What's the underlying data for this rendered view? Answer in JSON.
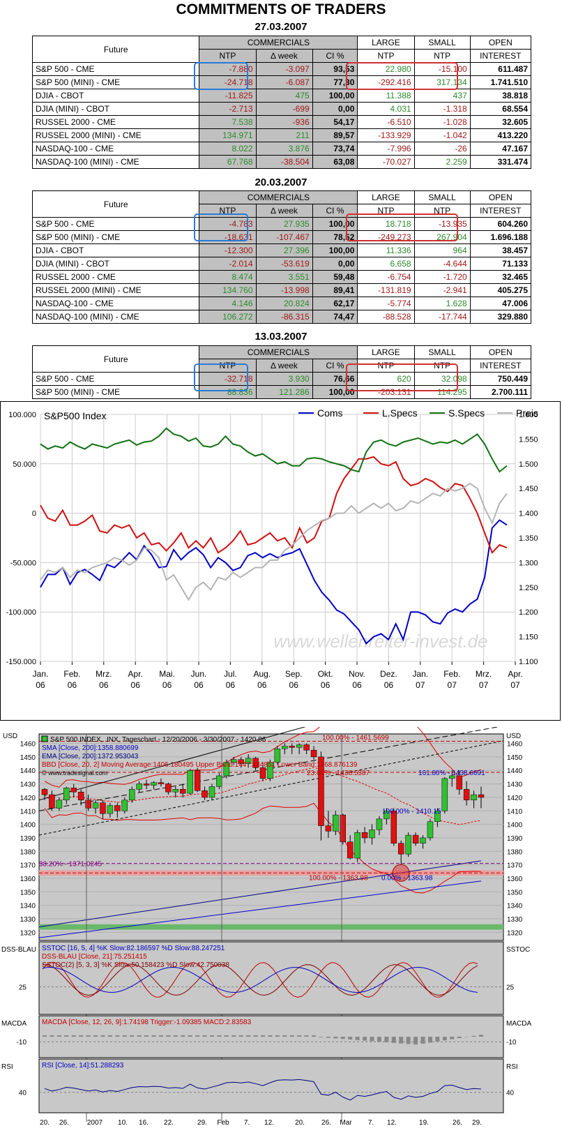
{
  "title": "COMMITMENTS OF TRADERS",
  "header": {
    "future": "Future",
    "commercials": "COMMERCIALS",
    "ntp": "NTP",
    "dweek": "∆ week",
    "ci": "CI %",
    "large": "LARGE",
    "small": "SMALL",
    "open": "OPEN",
    "interest": "INTEREST"
  },
  "tables": [
    {
      "date": "27.03.2007",
      "rows": [
        [
          "S&P 500 - CME",
          "-7.880",
          "-3.097",
          "93,53",
          "22.980",
          "-15.100",
          "611.487"
        ],
        [
          "S&P 500 (MINI) - CME",
          "-24.718",
          "-6.087",
          "77,30",
          "-292.416",
          "317.134",
          "1.741.510"
        ],
        [
          "DJIA - CBOT",
          "-11.825",
          "475",
          "100,00",
          "11.388",
          "437",
          "38.818"
        ],
        [
          "DJIA (MINI) - CBOT",
          "-2.713",
          "-699",
          "0,00",
          "4.031",
          "-1.318",
          "68.554"
        ],
        [
          "RUSSEL 2000 - CME",
          "7.538",
          "-936",
          "54,17",
          "-6.510",
          "-1.028",
          "32.605"
        ],
        [
          "RUSSEL 2000 (MINI) - CME",
          "134.971",
          "211",
          "89,57",
          "-133.929",
          "-1.042",
          "413.220"
        ],
        [
          "NASDAQ-100 - CME",
          "8.022",
          "3.876",
          "73,74",
          "-7.996",
          "-26",
          "47.167"
        ],
        [
          "NASDAQ-100 (MINI) - CME",
          "67.768",
          "-38.504",
          "63,08",
          "-70.027",
          "2.259",
          "331.474"
        ]
      ]
    },
    {
      "date": "20.03.2007",
      "rows": [
        [
          "S&P 500 - CME",
          "-4.783",
          "27.935",
          "100,00",
          "18.718",
          "-13.935",
          "604.260"
        ],
        [
          "S&P 500 (MINI) - CME",
          "-18.631",
          "-107.467",
          "78,52",
          "-249.273",
          "267.904",
          "1.696.188"
        ],
        [
          "DJIA - CBOT",
          "-12.300",
          "27.396",
          "100,00",
          "11.336",
          "964",
          "38.457"
        ],
        [
          "DJIA (MINI) - CBOT",
          "-2.014",
          "-53.619",
          "0,00",
          "6.658",
          "-4.644",
          "71.133"
        ],
        [
          "RUSSEL 2000 - CME",
          "8.474",
          "3.551",
          "59,48",
          "-6.754",
          "-1.720",
          "32.465"
        ],
        [
          "RUSSEL 2000 (MINI) - CME",
          "134.760",
          "-13.998",
          "89,41",
          "-131.819",
          "-2.941",
          "405.275"
        ],
        [
          "NASDAQ-100 - CME",
          "4.146",
          "20.824",
          "62,17",
          "-5.774",
          "1.628",
          "47.006"
        ],
        [
          "NASDAQ-100 (MINI) - CME",
          "106.272",
          "-86.315",
          "74,47",
          "-88.528",
          "-17.744",
          "329.880"
        ]
      ]
    },
    {
      "date": "13.03.2007",
      "rows": [
        [
          "S&P 500 - CME",
          "-32.718",
          "3.930",
          "76,66",
          "620",
          "32.098",
          "750.449"
        ],
        [
          "S&P 500 (MINI) - CME",
          "88.836",
          "121.286",
          "100,00",
          "-203.131",
          "114.295",
          "2.700.111"
        ]
      ]
    }
  ],
  "chart_data": [
    {
      "type": "line",
      "title": "S&P500 Index",
      "x_labels": [
        [
          "Jan.",
          "06"
        ],
        [
          "Feb.",
          "06"
        ],
        [
          "Mrz.",
          "06"
        ],
        [
          "Apr.",
          "06"
        ],
        [
          "Mai.",
          "06"
        ],
        [
          "Jun.",
          "06"
        ],
        [
          "Jul.",
          "06"
        ],
        [
          "Aug.",
          "06"
        ],
        [
          "Sep.",
          "06"
        ],
        [
          "Okt.",
          "06"
        ],
        [
          "Nov.",
          "06"
        ],
        [
          "Dez.",
          "06"
        ],
        [
          "Jan.",
          "07"
        ],
        [
          "Feb.",
          "07"
        ],
        [
          "Mrz.",
          "07"
        ],
        [
          "Apr.",
          "07"
        ]
      ],
      "y_left": [
        "100.000",
        "50.000",
        "0",
        "-50.000",
        "-100.000",
        "-150.000"
      ],
      "ylim_left": [
        -150000,
        100000
      ],
      "y_right": [
        "1.600",
        "1.550",
        "1.500",
        "1.450",
        "1.400",
        "1.350",
        "1.300",
        "1.250",
        "1.200",
        "1.150",
        "1.100"
      ],
      "ylim_right": [
        1100,
        1600
      ],
      "watermark": "www.wellenreiter-invest.de",
      "grid": true,
      "legend": "top",
      "series": [
        {
          "name": "Coms",
          "color": "#0000c8",
          "axis": "left",
          "values": [
            -75000,
            -62000,
            -62000,
            -55000,
            -72000,
            -60000,
            -57000,
            -62000,
            -68000,
            -52000,
            -55000,
            -48000,
            -40000,
            -47000,
            -33000,
            -42000,
            -55000,
            -54000,
            -37000,
            -47000,
            -40000,
            -35000,
            -42000,
            -55000,
            -45000,
            -50000,
            -58000,
            -55000,
            -43000,
            -40000,
            -45000,
            -41000,
            -45000,
            -42000,
            -40000,
            -36000,
            -52000,
            -68000,
            -80000,
            -88000,
            -98000,
            -102000,
            -110000,
            -118000,
            -132000,
            -125000,
            -122000,
            -128000,
            -112000,
            -128000,
            -100000,
            -100000,
            -103000,
            -110000,
            -112000,
            -101000,
            -97000,
            -100000,
            -92000,
            -87000,
            -65000,
            -15000,
            -7000,
            -12000
          ]
        },
        {
          "name": "L.Specs",
          "color": "#d01010",
          "axis": "left",
          "values": [
            8000,
            -5000,
            -8000,
            3000,
            -12000,
            -12000,
            -8000,
            -2000,
            -18000,
            -20000,
            -12000,
            -15000,
            -12000,
            -25000,
            -20000,
            -32000,
            -30000,
            -38000,
            -30000,
            -20000,
            -35000,
            -28000,
            -35000,
            -25000,
            -40000,
            -35000,
            -28000,
            -18000,
            -32000,
            -30000,
            -25000,
            -20000,
            -28000,
            -25000,
            -35000,
            -15000,
            -30000,
            -25000,
            -8000,
            -5000,
            20000,
            35000,
            45000,
            55000,
            55000,
            57000,
            50000,
            48000,
            52000,
            35000,
            28000,
            30000,
            35000,
            32000,
            26000,
            22000,
            30000,
            28000,
            15000,
            0,
            -20000,
            -40000,
            -32000,
            -35000
          ]
        },
        {
          "name": "S.Specs",
          "color": "#107010",
          "axis": "left",
          "values": [
            70000,
            65000,
            68000,
            66000,
            72000,
            68000,
            65000,
            70000,
            68000,
            66000,
            70000,
            72000,
            74000,
            69000,
            72000,
            73000,
            78000,
            86000,
            80000,
            78000,
            73000,
            76000,
            68000,
            67000,
            70000,
            78000,
            70000,
            68000,
            62000,
            58000,
            60000,
            55000,
            50000,
            52000,
            48000,
            48000,
            55000,
            56000,
            55000,
            52000,
            50000,
            48000,
            44000,
            42000,
            62000,
            72000,
            74000,
            70000,
            68000,
            72000,
            74000,
            76000,
            73000,
            70000,
            72000,
            71000,
            74000,
            70000,
            75000,
            80000,
            70000,
            55000,
            42000,
            48000
          ]
        },
        {
          "name": "Preis",
          "color": "#b4b4b4",
          "axis": "right",
          "values": [
            1265,
            1285,
            1280,
            1290,
            1270,
            1285,
            1280,
            1290,
            1295,
            1300,
            1310,
            1305,
            1295,
            1305,
            1330,
            1325,
            1310,
            1265,
            1275,
            1250,
            1225,
            1250,
            1260,
            1245,
            1270,
            1265,
            1280,
            1270,
            1280,
            1290,
            1290,
            1305,
            1305,
            1325,
            1335,
            1350,
            1365,
            1375,
            1385,
            1390,
            1400,
            1400,
            1415,
            1400,
            1410,
            1420,
            1410,
            1420,
            1405,
            1410,
            1425,
            1420,
            1430,
            1440,
            1435,
            1450,
            1445,
            1450,
            1460,
            1450,
            1410,
            1380,
            1420,
            1440
          ]
        }
      ]
    },
    {
      "type": "candlestick",
      "title": "S&P 500 INDEX, .INX, Tageschart - 12/20/2006 - 3/30/2007 - 1420.86",
      "sma": "SMA [Close, 200]:1358.880699",
      "ema": "EMA [Close, 200]:1372.953043",
      "bb": "BBD [Close, 20, 2] Moving Average:1406.180495 Upper Band:1447.484851 Lower Band:1368.876139",
      "source": "© www.tradesignal.com",
      "y_unit": "USD",
      "y_labels": [
        "1460",
        "1450",
        "1440",
        "1430",
        "1420",
        "1410",
        "1400",
        "1390",
        "1380",
        "1370",
        "1360",
        "1350",
        "1340",
        "1330",
        "1320"
      ],
      "ylim": [
        1314,
        1467
      ],
      "fib": {
        "top": "100.00% - 1461.5699",
        "f23": "23.60% - 1438.5387",
        "f161": "161.80% - 1438.6691",
        "f100a": "100.00% - 1410.15",
        "f38": "38.20% - 1371.0245",
        "f100b": "100.00% - 1363.98",
        "f0": "0.00% - 1363.98"
      },
      "x_labels": [
        "20.",
        "26.",
        "2007",
        "10.",
        "16.",
        "22.",
        "29.",
        "Feb",
        "7.",
        "12.",
        "20.",
        "26.",
        "Mar",
        "7.",
        "12.",
        "19.",
        "26.",
        "29."
      ],
      "candles": [
        [
          1426,
          1427,
          1418,
          1422
        ],
        [
          1422,
          1425,
          1410,
          1412
        ],
        [
          1412,
          1420,
          1410,
          1418
        ],
        [
          1418,
          1428,
          1415,
          1427
        ],
        [
          1427,
          1430,
          1420,
          1424
        ],
        [
          1424,
          1426,
          1414,
          1418
        ],
        [
          1418,
          1422,
          1410,
          1412
        ],
        [
          1412,
          1418,
          1408,
          1416
        ],
        [
          1416,
          1418,
          1404,
          1408
        ],
        [
          1408,
          1416,
          1405,
          1414
        ],
        [
          1414,
          1416,
          1405,
          1410
        ],
        [
          1410,
          1420,
          1408,
          1418
        ],
        [
          1418,
          1428,
          1416,
          1426
        ],
        [
          1426,
          1432,
          1424,
          1430
        ],
        [
          1430,
          1433,
          1426,
          1429
        ],
        [
          1429,
          1432,
          1426,
          1431
        ],
        [
          1431,
          1434,
          1428,
          1430
        ],
        [
          1430,
          1431,
          1422,
          1424
        ],
        [
          1424,
          1428,
          1420,
          1426
        ],
        [
          1426,
          1430,
          1420,
          1423
        ],
        [
          1423,
          1441,
          1422,
          1440
        ],
        [
          1440,
          1442,
          1424,
          1425
        ],
        [
          1425,
          1428,
          1418,
          1420
        ],
        [
          1420,
          1430,
          1418,
          1428
        ],
        [
          1428,
          1438,
          1426,
          1436
        ],
        [
          1436,
          1448,
          1434,
          1446
        ],
        [
          1446,
          1450,
          1444,
          1448
        ],
        [
          1448,
          1450,
          1442,
          1445
        ],
        [
          1445,
          1452,
          1442,
          1449
        ],
        [
          1449,
          1450,
          1440,
          1442
        ],
        [
          1442,
          1446,
          1432,
          1434
        ],
        [
          1434,
          1448,
          1432,
          1446
        ],
        [
          1446,
          1458,
          1444,
          1456
        ],
        [
          1456,
          1460,
          1452,
          1458
        ],
        [
          1458,
          1460,
          1452,
          1457
        ],
        [
          1457,
          1460,
          1452,
          1459
        ],
        [
          1459,
          1460,
          1452,
          1455
        ],
        [
          1455,
          1458,
          1448,
          1450
        ],
        [
          1450,
          1454,
          1388,
          1399
        ],
        [
          1399,
          1410,
          1390,
          1395
        ],
        [
          1395,
          1410,
          1392,
          1407
        ],
        [
          1407,
          1408,
          1385,
          1387
        ],
        [
          1387,
          1392,
          1374,
          1375
        ],
        [
          1375,
          1396,
          1372,
          1394
        ],
        [
          1394,
          1398,
          1386,
          1390
        ],
        [
          1390,
          1400,
          1385,
          1396
        ],
        [
          1396,
          1406,
          1392,
          1404
        ],
        [
          1404,
          1412,
          1400,
          1410
        ],
        [
          1410,
          1412,
          1384,
          1386
        ],
        [
          1386,
          1388,
          1370,
          1378
        ],
        [
          1378,
          1394,
          1376,
          1392
        ],
        [
          1392,
          1394,
          1384,
          1386
        ],
        [
          1386,
          1392,
          1382,
          1390
        ],
        [
          1390,
          1404,
          1388,
          1402
        ],
        [
          1402,
          1412,
          1398,
          1410
        ],
        [
          1410,
          1435,
          1408,
          1434
        ],
        [
          1434,
          1440,
          1428,
          1436
        ],
        [
          1436,
          1440,
          1422,
          1426
        ],
        [
          1426,
          1432,
          1414,
          1418
        ],
        [
          1418,
          1425,
          1412,
          1422
        ],
        [
          1422,
          1428,
          1412,
          1420
        ]
      ],
      "panels": [
        {
          "name": "DSS-BLAU",
          "unit": "SSTOC",
          "lines": [
            "SSTOC [16, 5, 4] %K Slow:82.186597 %D Slow:88.247251",
            "DSS-BLAU [Close, 21]:75.251415",
            "SSTOC(2) [5, 3, 3] %K Slow:50.158423 %D Slow:42.750038"
          ],
          "level": "25"
        },
        {
          "name": "MACDA",
          "unit": "MACDA",
          "lines": [
            "MACDA [Close, 12, 26, 9]:1.74198 Trigger:-1.09385 MACD:2.83583"
          ],
          "level": "-10"
        },
        {
          "name": "RSI",
          "unit": "RSI",
          "lines": [
            "RSI [Close, 14]:51.288293"
          ],
          "level": "40"
        }
      ]
    }
  ]
}
